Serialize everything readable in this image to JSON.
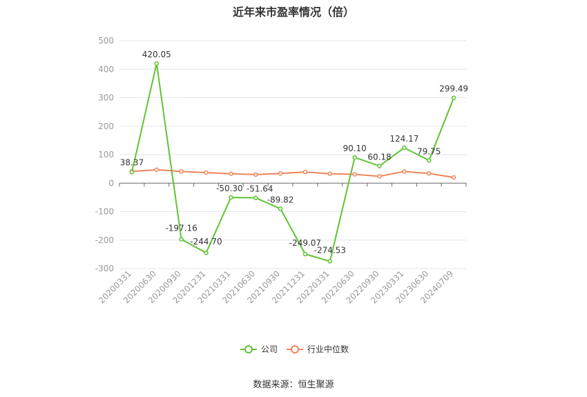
{
  "chart_data": {
    "type": "line",
    "title": "近年来市盈率情况（倍）",
    "xlabel": "",
    "ylabel": "",
    "ylim": [
      -300,
      500
    ],
    "yticks": [
      500,
      400,
      300,
      200,
      100,
      0,
      -100,
      -200,
      -300
    ],
    "grid": true,
    "legend_position": "bottom",
    "categories": [
      "20200331",
      "20200630",
      "20200930",
      "20201231",
      "20210331",
      "20210630",
      "20210930",
      "20211231",
      "20220331",
      "20220630",
      "20220930",
      "20230331",
      "20230630",
      "20240709"
    ],
    "series": [
      {
        "name": "公司",
        "color": "#5ec432",
        "values": [
          38.37,
          420.05,
          -197.16,
          -244.7,
          -50.3,
          -51.64,
          -89.82,
          -249.07,
          -274.53,
          90.1,
          60.18,
          124.17,
          79.75,
          299.49
        ],
        "labels": [
          "38.37",
          "420.05",
          "-197.16",
          "-244.70",
          "-50.30",
          "-51.64",
          "-89.82",
          "-249.07",
          "-274.53",
          "90.10",
          "60.18",
          "124.17",
          "79.75",
          "299.49"
        ]
      },
      {
        "name": "行业中位数",
        "color": "#f0845a",
        "values": [
          41,
          47,
          41,
          37,
          33,
          30,
          34,
          39,
          33,
          31,
          24,
          41,
          34,
          20
        ]
      }
    ]
  },
  "source": "数据来源：恒生聚源"
}
